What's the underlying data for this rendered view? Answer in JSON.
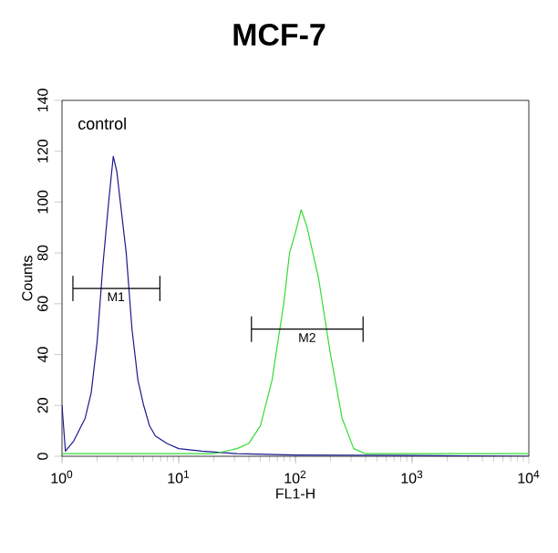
{
  "chart_data": {
    "type": "line",
    "title": "MCF-7",
    "xlabel": "FL1-H",
    "ylabel": "Counts",
    "log": "x",
    "xlim": [
      1,
      10000
    ],
    "ylim": [
      0,
      140
    ],
    "xticks": [
      {
        "value": 1,
        "label": "10$^{0}$"
      },
      {
        "value": 10,
        "label": "10$^{1}$"
      },
      {
        "value": 100,
        "label": "10$^{2}$"
      },
      {
        "value": 1000,
        "label": "10$^{3}$"
      },
      {
        "value": 10000,
        "label": "10$^{4}$"
      }
    ],
    "yticks": [
      0,
      20,
      40,
      60,
      80,
      100,
      120,
      140
    ],
    "annotations": [
      "control",
      {
        "text": "M1",
        "x": 2.9,
        "y": 66
      },
      {
        "text": "M2",
        "x": 126,
        "y": 50
      }
    ],
    "series": [
      {
        "color": "#1a1a8c",
        "x": [
          1,
          1.07,
          1.26,
          1.58,
          1.78,
          2.0,
          2.24,
          2.51,
          2.75,
          2.95,
          3.16,
          3.55,
          3.98,
          4.47,
          5.01,
          5.62,
          6.31,
          7.94,
          10,
          15.8,
          31.6,
          100,
          1000,
          10000
        ],
        "values": [
          20,
          2,
          6,
          15,
          25,
          45,
          75,
          100,
          118,
          112,
          100,
          80,
          50,
          30,
          20,
          12,
          8,
          5,
          3,
          2,
          1,
          0.5,
          0.3,
          0
        ]
      },
      {
        "color": "#33dd33",
        "x": [
          1,
          10,
          20,
          31.6,
          39.8,
          50.1,
          63.1,
          79.4,
          89.1,
          100,
          112,
          126,
          141,
          158,
          200,
          251,
          316,
          398,
          1000,
          10000
        ],
        "values": [
          1,
          1,
          1,
          3,
          5,
          12,
          30,
          60,
          80,
          88,
          97,
          90,
          80,
          70,
          40,
          15,
          3,
          1,
          1,
          1
        ]
      },
      {
        "color": "#000000",
        "x": [
          1.24,
          6.9
        ],
        "values": [
          66,
          66
        ],
        "errors": [
          5,
          5
        ]
      },
      {
        "color": "#000000",
        "x": [
          42,
          380
        ],
        "values": [
          50,
          50
        ],
        "errors": [
          5,
          5
        ]
      }
    ]
  }
}
